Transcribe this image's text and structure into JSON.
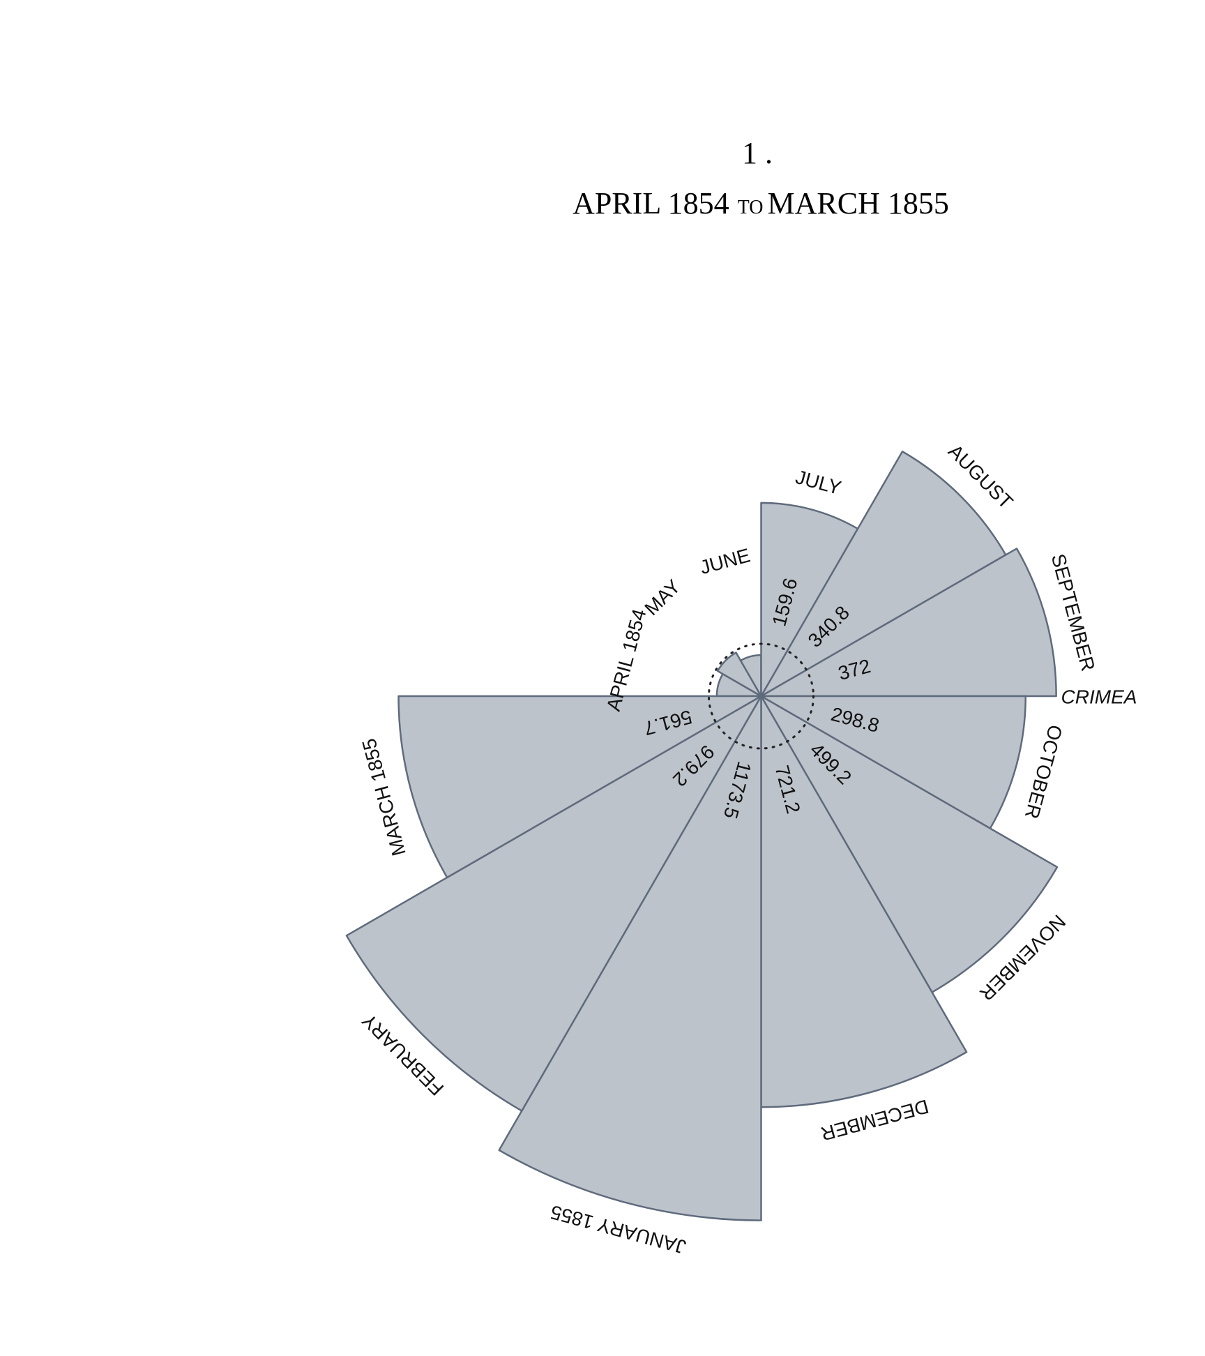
{
  "chart_data": {
    "type": "rose",
    "title": "1 .",
    "subtitle": [
      "APRIL 1854",
      "TO",
      "MARCH 1855"
    ],
    "annotation": "CRIMEA",
    "categories": [
      "APRIL 1854",
      "MAY",
      "JUNE",
      "JULY",
      "AUGUST",
      "SEPTEMBER",
      "OCTOBER",
      "NOVEMBER",
      "DECEMBER",
      "JANUARY 1855",
      "FEBRUARY",
      "MARCH 1855"
    ],
    "values": [
      8.4,
      10.8,
      7.2,
      159.6,
      340.8,
      372,
      298.8,
      499.2,
      721.2,
      1173.5,
      979.2,
      561.7
    ],
    "value_labels": [
      null,
      null,
      null,
      "159.6",
      "340.8",
      "372",
      "298.8",
      "499.2",
      "721.2",
      "1173.5",
      "979.2",
      "561.7"
    ],
    "color": "#bdc3cb",
    "edge_color": "#5f6b7c"
  }
}
